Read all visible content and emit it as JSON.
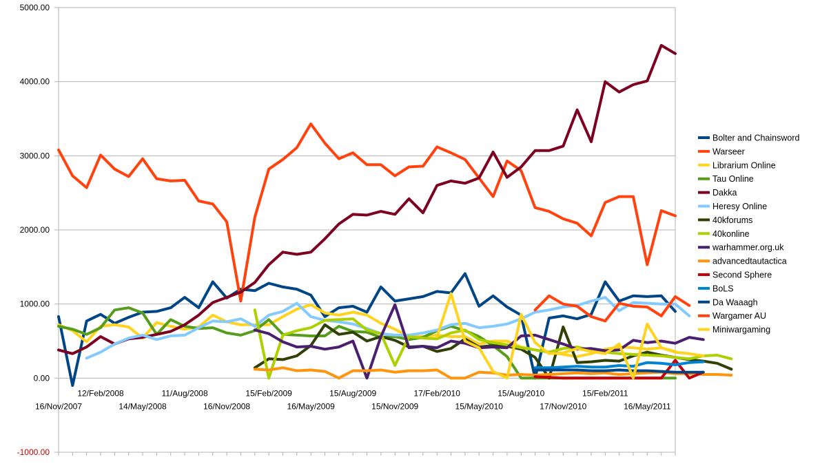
{
  "chart_data": {
    "type": "line",
    "title": "",
    "xlabel": "",
    "ylabel": "",
    "ylim": [
      -1000,
      5000
    ],
    "y_ticks": [
      "5000.00",
      "4000.00",
      "3000.00",
      "2000.00",
      "1000.00",
      "0.00",
      "-1000.00"
    ],
    "y_tick_values": [
      5000,
      4000,
      3000,
      2000,
      1000,
      0,
      -1000
    ],
    "x_ticks_upper": [
      {
        "label": "12/Feb/2008",
        "index": 3
      },
      {
        "label": "11/Aug/2008",
        "index": 9
      },
      {
        "label": "15/Feb/2009",
        "index": 15
      },
      {
        "label": "15/Aug/2009",
        "index": 21
      },
      {
        "label": "17/Feb/2010",
        "index": 27
      },
      {
        "label": "15/Aug/2010",
        "index": 33
      },
      {
        "label": "15/Feb/2011",
        "index": 39
      }
    ],
    "x_ticks_lower": [
      {
        "label": "16/Nov/2007",
        "index": 0
      },
      {
        "label": "14/May/2008",
        "index": 6
      },
      {
        "label": "16/Nov/2008",
        "index": 12
      },
      {
        "label": "16/May/2009",
        "index": 18
      },
      {
        "label": "15/Nov/2009",
        "index": 24
      },
      {
        "label": "15/May/2010",
        "index": 30
      },
      {
        "label": "17/Nov/2010",
        "index": 36
      },
      {
        "label": "16/May/2011",
        "index": 42
      }
    ],
    "n_points": 45,
    "grid": "horizontal",
    "legend_position": "right",
    "series": [
      {
        "name": "Bolter and Chainsword",
        "color": "#004586",
        "start": 0,
        "values": [
          830,
          -100,
          770,
          860,
          740,
          820,
          890,
          900,
          950,
          1090,
          950,
          1300,
          1080,
          1200,
          1180,
          1280,
          1230,
          1200,
          1120,
          830,
          950,
          970,
          890,
          1230,
          1040,
          1070,
          1100,
          1170,
          1150,
          1410,
          970,
          1110,
          960,
          850,
          0,
          810,
          840,
          800,
          860,
          1300,
          1040,
          1110,
          1100,
          1110,
          900
        ]
      },
      {
        "name": "Warseer",
        "color": "#ff420e",
        "start": 0,
        "values": [
          3080,
          2730,
          2570,
          3010,
          2820,
          2720,
          2960,
          2690,
          2660,
          2670,
          2390,
          2350,
          2110,
          1040,
          2170,
          2820,
          2950,
          3110,
          3430,
          3170,
          2960,
          3040,
          2880,
          2880,
          2730,
          2850,
          2860,
          3120,
          3040,
          2950,
          2700,
          2450,
          2930,
          2800,
          2300,
          2250,
          2150,
          2090,
          1920,
          2370,
          2450,
          2450,
          1530,
          2260,
          2190
        ]
      },
      {
        "name": "Librarium Online",
        "color": "#ffd320",
        "start": 0,
        "values": [
          720,
          640,
          490,
          700,
          720,
          690,
          540,
          750,
          700,
          660,
          690,
          850,
          760,
          720,
          720,
          720,
          830,
          930,
          990,
          880,
          850,
          890,
          850,
          740,
          660,
          560,
          560,
          580,
          560,
          560,
          460,
          500,
          500,
          420,
          380,
          350,
          320,
          290,
          330,
          390,
          420,
          410,
          390,
          410,
          360
        ]
      },
      {
        "name": "Tau Online",
        "color": "#579d1c",
        "start": 0,
        "values": [
          700,
          660,
          590,
          680,
          920,
          950,
          880,
          590,
          790,
          700,
          670,
          680,
          610,
          580,
          640,
          790,
          590,
          580,
          570,
          570,
          700,
          630,
          620,
          550,
          560,
          520,
          550,
          640,
          700,
          640,
          560,
          440,
          290,
          0,
          0,
          0,
          0,
          0,
          0,
          0,
          0,
          0,
          0,
          0,
          0
        ]
      },
      {
        "name": "Dakka",
        "color": "#7e0021",
        "start": 0,
        "values": [
          380,
          330,
          420,
          560,
          460,
          530,
          550,
          590,
          630,
          720,
          850,
          1020,
          1090,
          1160,
          1290,
          1530,
          1700,
          1670,
          1700,
          1880,
          2080,
          2210,
          2200,
          2250,
          2210,
          2420,
          2230,
          2600,
          2660,
          2630,
          2700,
          3050,
          2710,
          2850,
          3070,
          3070,
          3130,
          3620,
          3190,
          4000,
          3860,
          3960,
          4010,
          4490,
          4380
        ]
      },
      {
        "name": "Heresy Online",
        "color": "#83caff",
        "start": 2,
        "values": [
          270,
          350,
          460,
          540,
          580,
          520,
          570,
          580,
          680,
          770,
          760,
          800,
          700,
          850,
          900,
          1010,
          830,
          780,
          760,
          730,
          670,
          600,
          580,
          580,
          610,
          650,
          720,
          740,
          680,
          700,
          730,
          800,
          890,
          920,
          960,
          980,
          1040,
          1090,
          910,
          1020,
          1010,
          1000,
          1000,
          840
        ]
      },
      {
        "name": "40kforums",
        "color": "#314004",
        "start": 14,
        "values": [
          140,
          260,
          250,
          300,
          440,
          720,
          590,
          620,
          500,
          560,
          510,
          420,
          430,
          360,
          400,
          530,
          420,
          440,
          430,
          390,
          280,
          0,
          690,
          210,
          220,
          240,
          230,
          300,
          350,
          310,
          280,
          250,
          230,
          200,
          120
        ]
      },
      {
        "name": "40konline",
        "color": "#aecf00",
        "start": 14,
        "values": [
          920,
          0,
          580,
          640,
          680,
          780,
          790,
          800,
          650,
          600,
          170,
          560,
          540,
          530,
          610,
          650,
          520,
          480,
          450,
          410,
          380,
          350,
          400,
          420,
          380,
          350,
          330,
          320,
          310,
          300,
          280,
          260,
          300,
          310,
          260
        ]
      },
      {
        "name": "warhammer.org.uk",
        "color": "#4b1f6f",
        "start": 14,
        "values": [
          650,
          600,
          490,
          420,
          430,
          390,
          420,
          500,
          0,
          560,
          990,
          410,
          430,
          410,
          500,
          470,
          410,
          420,
          410,
          570,
          580,
          520,
          460,
          390,
          400,
          370,
          380,
          510,
          480,
          500,
          470,
          550,
          520
        ]
      },
      {
        "name": "advancedtautactica",
        "color": "#ff950e",
        "start": 14,
        "values": [
          120,
          110,
          140,
          100,
          110,
          90,
          0,
          100,
          100,
          110,
          80,
          100,
          100,
          110,
          0,
          0,
          80,
          70,
          40,
          50,
          40,
          50,
          60,
          70,
          60,
          70,
          50,
          60,
          70,
          80,
          60,
          60,
          50,
          50,
          40
        ]
      },
      {
        "name": "Second Sphere",
        "color": "#c5000b",
        "start": 34,
        "values": [
          20,
          10,
          0,
          0,
          0,
          0,
          0,
          0,
          0,
          0,
          240,
          0,
          80
        ]
      },
      {
        "name": "BoLS",
        "color": "#0084d1",
        "start": 34,
        "values": [
          140,
          140,
          150,
          160,
          150,
          150,
          170,
          160,
          210,
          200,
          180,
          210,
          220
        ]
      },
      {
        "name": "Da Waaagh",
        "color": "#004586",
        "start": 34,
        "values": [
          110,
          110,
          110,
          110,
          100,
          100,
          110,
          100,
          100,
          90,
          80,
          80,
          80
        ]
      },
      {
        "name": "Wargamer AU",
        "color": "#ff420e",
        "start": 34,
        "values": [
          920,
          1110,
          1000,
          970,
          830,
          770,
          1010,
          970,
          960,
          840,
          1100,
          980
        ]
      },
      {
        "name": "Miniwargaming",
        "color": "#ffd320",
        "start": 27,
        "values": [
          560,
          1140,
          500,
          410,
          90,
          0,
          860,
          480,
          330,
          340,
          400,
          360,
          330,
          460,
          0,
          730,
          410,
          350,
          330,
          300
        ]
      }
    ]
  }
}
